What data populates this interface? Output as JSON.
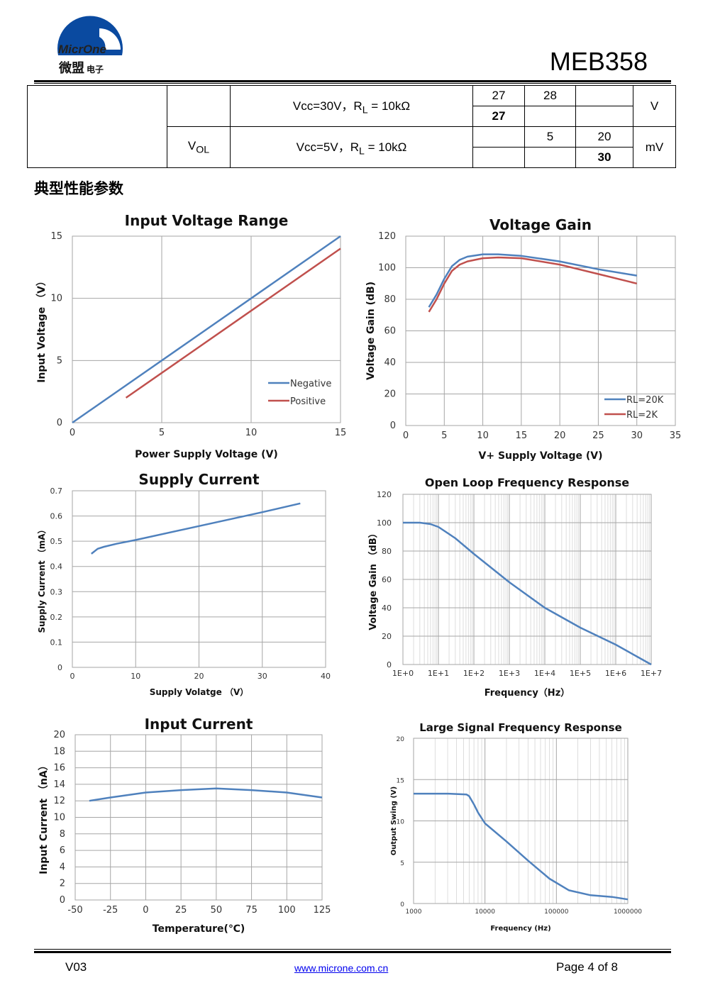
{
  "header": {
    "logo_en": "MicrOne",
    "logo_cn": "微盟",
    "logo_cn_small": "电子",
    "model": "MEB358"
  },
  "spec_table": {
    "row1": {
      "param": "",
      "condition": "Vcc=30V，R<sub>L</sub> = 10kΩ",
      "min_a": "27",
      "typ_a": "28",
      "max_a": "",
      "min_b": "27",
      "typ_b": "",
      "max_b": "",
      "unit": "V"
    },
    "row2": {
      "param": "V<sub>OL</sub>",
      "condition": "Vcc=5V，R<sub>L</sub> = 10kΩ",
      "min_a": "",
      "typ_a": "5",
      "max_a": "20",
      "min_b": "",
      "typ_b": "",
      "max_b": "30",
      "unit": "mV"
    }
  },
  "section_title": "典型性能参数",
  "chart_data": [
    {
      "id": "input_voltage_range",
      "type": "line",
      "title": "Input Voltage Range",
      "xlabel": "Power Supply Voltage (V)",
      "ylabel": "Input Voltage （V）",
      "xlim": [
        0,
        15
      ],
      "ylim": [
        0,
        15
      ],
      "xticks": [
        0,
        5,
        10,
        15
      ],
      "yticks": [
        0,
        5,
        10,
        15
      ],
      "xlabels": [
        "0",
        "5",
        "10",
        "15"
      ],
      "ylabels": [
        "0",
        "5",
        "10",
        "15"
      ],
      "grid": true,
      "legend": "bottom-right",
      "series": [
        {
          "name": "Negative",
          "color": "#4F81BD",
          "x": [
            0,
            15
          ],
          "y": [
            0,
            15
          ]
        },
        {
          "name": "Positive",
          "color": "#C0504D",
          "x": [
            3,
            15
          ],
          "y": [
            2,
            14
          ]
        }
      ]
    },
    {
      "id": "voltage_gain",
      "type": "line",
      "title": "Voltage Gain",
      "xlabel": "V+ Supply Voltage (V)",
      "ylabel": "Voltage Gain (dB)",
      "xlim": [
        0,
        35
      ],
      "ylim": [
        0,
        120
      ],
      "xticks": [
        0,
        5,
        10,
        15,
        20,
        25,
        30,
        35
      ],
      "yticks": [
        0,
        20,
        40,
        60,
        80,
        100,
        120
      ],
      "xlabels": [
        "0",
        "5",
        "10",
        "15",
        "20",
        "25",
        "30",
        "35"
      ],
      "ylabels": [
        "0",
        "20",
        "40",
        "60",
        "80",
        "100",
        "120"
      ],
      "grid": true,
      "legend": "bottom-right",
      "series": [
        {
          "name": "RL=20K",
          "color": "#4F81BD",
          "x": [
            3,
            4,
            5,
            6,
            7,
            8,
            10,
            12,
            15,
            20,
            25,
            30
          ],
          "y": [
            75,
            83,
            93,
            101,
            105,
            107,
            108.5,
            108.5,
            107.5,
            104,
            99,
            95
          ]
        },
        {
          "name": "RL=2K",
          "color": "#C0504D",
          "x": [
            3,
            4,
            5,
            6,
            7,
            8,
            10,
            12,
            15,
            20,
            25,
            30
          ],
          "y": [
            72,
            80,
            90,
            98,
            102,
            104,
            106,
            106.5,
            106,
            102,
            96,
            90
          ]
        }
      ]
    },
    {
      "id": "supply_current",
      "type": "line",
      "title": "Supply Current",
      "xlabel": "Supply Volatge （V）",
      "ylabel": "Supply Current （mA）",
      "xlim": [
        0,
        40
      ],
      "ylim": [
        0,
        0.7
      ],
      "xticks": [
        0,
        10,
        20,
        30,
        40
      ],
      "yticks": [
        0,
        0.1,
        0.2,
        0.3,
        0.4,
        0.5,
        0.6,
        0.7
      ],
      "xlabels": [
        "0",
        "10",
        "20",
        "30",
        "40"
      ],
      "ylabels": [
        "0",
        "0.1",
        "0.2",
        "0.3",
        "0.4",
        "0.5",
        "0.6",
        "0.7"
      ],
      "grid": true,
      "series": [
        {
          "name": "",
          "color": "#4F81BD",
          "x": [
            3,
            4,
            5,
            7,
            10,
            20,
            30,
            36
          ],
          "y": [
            0.45,
            0.47,
            0.478,
            0.49,
            0.505,
            0.56,
            0.615,
            0.65
          ]
        }
      ]
    },
    {
      "id": "open_loop_freq",
      "type": "line",
      "title": "Open Loop Frequency Response",
      "xlabel": "Frequency（Hz）",
      "ylabel": "Voltage Gain （dB）",
      "xscale": "log",
      "xlim": [
        1,
        10000000
      ],
      "ylim": [
        0,
        120
      ],
      "xticks": [
        1,
        10,
        100,
        1000,
        10000,
        100000,
        1000000,
        10000000
      ],
      "yticks": [
        0,
        20,
        40,
        60,
        80,
        100,
        120
      ],
      "xlabels": [
        "1E+0",
        "1E+1",
        "1E+2",
        "1E+3",
        "1E+4",
        "1E+5",
        "1E+6",
        "1E+7"
      ],
      "ylabels": [
        "0",
        "20",
        "40",
        "60",
        "80",
        "100",
        "120"
      ],
      "grid": true,
      "series": [
        {
          "name": "",
          "color": "#4F81BD",
          "x": [
            1,
            3,
            6,
            10,
            30,
            100,
            1000,
            10000,
            100000,
            1000000,
            10000000
          ],
          "y": [
            100,
            100,
            99,
            97,
            89,
            78,
            58,
            40,
            26,
            14,
            0
          ]
        }
      ]
    },
    {
      "id": "input_current",
      "type": "line",
      "title": "Input Current",
      "xlabel": "Temperature(℃)",
      "ylabel": "Input Current （nA）",
      "xlim": [
        -50,
        125
      ],
      "ylim": [
        0,
        20
      ],
      "xticks": [
        -50,
        -25,
        0,
        25,
        50,
        75,
        100,
        125
      ],
      "yticks": [
        0,
        2,
        4,
        6,
        8,
        10,
        12,
        14,
        16,
        18,
        20
      ],
      "xlabels": [
        "-50",
        "-25",
        "0",
        "25",
        "50",
        "75",
        "100",
        "125"
      ],
      "ylabels": [
        "0",
        "2",
        "4",
        "6",
        "8",
        "10",
        "12",
        "14",
        "16",
        "18",
        "20"
      ],
      "grid": true,
      "series": [
        {
          "name": "",
          "color": "#4F81BD",
          "x": [
            -40,
            -25,
            0,
            25,
            50,
            75,
            100,
            125
          ],
          "y": [
            12,
            12.4,
            13,
            13.3,
            13.5,
            13.3,
            13,
            12.4
          ]
        }
      ]
    },
    {
      "id": "large_signal_freq",
      "type": "line",
      "title": "Large Signal Frequency Response",
      "xlabel": "Frequency (Hz)",
      "ylabel": "Output Swing (V)",
      "xscale": "log",
      "xlim": [
        1000,
        1000000
      ],
      "ylim": [
        0,
        20
      ],
      "xticks": [
        1000,
        10000,
        100000,
        1000000
      ],
      "yticks": [
        0,
        5,
        10,
        15,
        20
      ],
      "xlabels": [
        "1000",
        "10000",
        "100000",
        "1000000"
      ],
      "ylabels": [
        "0",
        "5",
        "10",
        "15",
        "20"
      ],
      "grid": true,
      "series": [
        {
          "name": "",
          "color": "#4F81BD",
          "x": [
            1000,
            3000,
            5500,
            6000,
            7000,
            8000,
            10000,
            20000,
            40000,
            80000,
            150000,
            300000,
            600000,
            1000000
          ],
          "y": [
            13.3,
            13.3,
            13.2,
            13,
            12,
            11,
            9.7,
            7.5,
            5.2,
            3.0,
            1.6,
            1.0,
            0.8,
            0.5
          ]
        }
      ]
    }
  ],
  "footer": {
    "version": "V03",
    "url": "www.microne.com.cn",
    "page": "Page 4 of 8"
  }
}
